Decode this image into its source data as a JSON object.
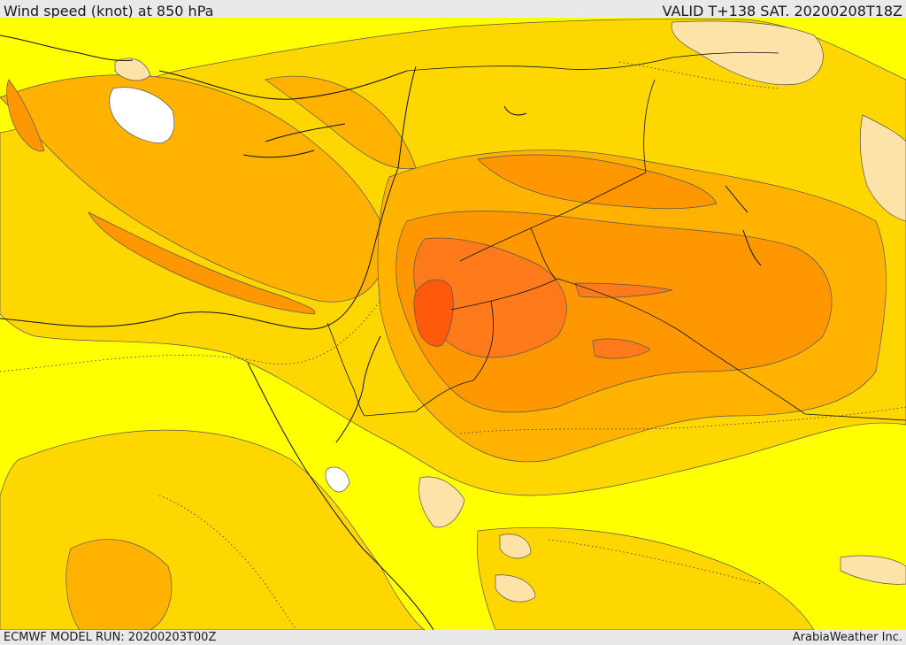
{
  "header": {
    "title": "Wind speed (knot) at 850 hPa",
    "valid_time": "VALID T+138 SAT. 20200208T18Z"
  },
  "footer": {
    "model_run": "ECMWF MODEL RUN: 20200203T00Z",
    "credit": "ArabiaWeather Inc."
  },
  "map": {
    "colors": {
      "calm": "#ffffff",
      "light": "#fde3a7",
      "low": "#ffff00",
      "moderate": "#ffd700",
      "fresh": "#ffb300",
      "strong": "#ff9800",
      "very_strong": "#ff7a1a",
      "max": "#ff5a0a"
    }
  }
}
